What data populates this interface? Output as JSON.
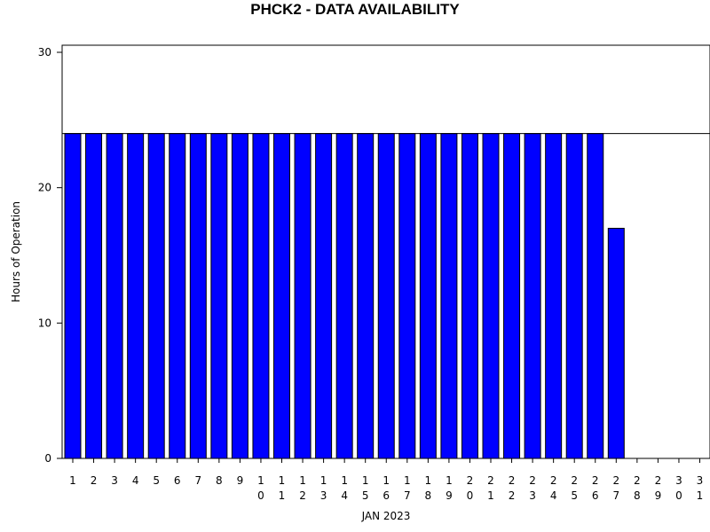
{
  "chart_data": {
    "type": "bar",
    "title": "PHCK2 - DATA AVAILABILITY",
    "xlabel": "JAN 2023",
    "ylabel": "Hours of Operation",
    "categories": [
      "1",
      "2",
      "3",
      "4",
      "5",
      "6",
      "7",
      "8",
      "9",
      "10",
      "11",
      "12",
      "13",
      "14",
      "15",
      "16",
      "17",
      "18",
      "19",
      "20",
      "21",
      "22",
      "23",
      "24",
      "25",
      "26",
      "27",
      "28",
      "29",
      "30",
      "31"
    ],
    "values": [
      24,
      24,
      24,
      24,
      24,
      24,
      24,
      24,
      24,
      24,
      24,
      24,
      24,
      24,
      24,
      24,
      24,
      24,
      24,
      24,
      24,
      24,
      24,
      24,
      24,
      24,
      17,
      0,
      0,
      0,
      0
    ],
    "ylim": [
      0,
      30
    ],
    "yticks": [
      0,
      10,
      20,
      30
    ],
    "reference_line": 24,
    "grid": false,
    "bar_color": "#0000ff",
    "bar_edge_color": "#000000"
  }
}
